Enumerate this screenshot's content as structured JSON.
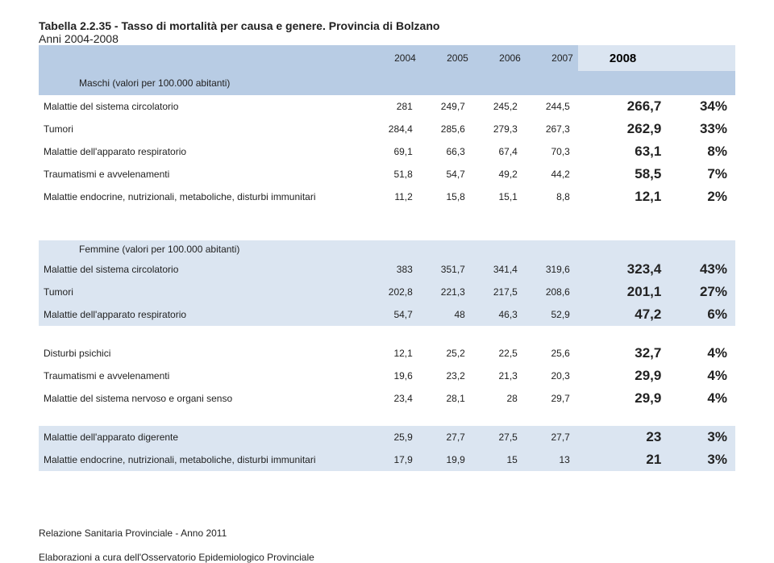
{
  "title": "Tabella 2.2.35 - Tasso di mortalità per causa e genere. Provincia di Bolzano",
  "subtitle": "Anni  2004-2008",
  "years": [
    "2004",
    "2005",
    "2006",
    "2007",
    "2008"
  ],
  "pct_header": "",
  "section_male": "Maschi (valori per 100.000 abitanti)",
  "section_female": "Femmine (valori per 100.000 abitanti)",
  "male_rows": [
    {
      "label": "Malattie del sistema circolatorio",
      "v": [
        "281",
        "249,7",
        "245,2",
        "244,5"
      ],
      "big": "266,7",
      "pct": "34%"
    },
    {
      "label": "Tumori",
      "v": [
        "284,4",
        "285,6",
        "279,3",
        "267,3"
      ],
      "big": "262,9",
      "pct": "33%"
    },
    {
      "label": "Malattie dell'apparato respiratorio",
      "v": [
        "69,1",
        "66,3",
        "67,4",
        "70,3"
      ],
      "big": "63,1",
      "pct": "8%"
    },
    {
      "label": "Traumatismi e avvelenamenti",
      "v": [
        "51,8",
        "54,7",
        "49,2",
        "44,2"
      ],
      "big": "58,5",
      "pct": "7%"
    },
    {
      "label": "Malattie endocrine, nutrizionali, metaboliche, disturbi immunitari",
      "v": [
        "11,2",
        "15,8",
        "15,1",
        "8,8"
      ],
      "big": "12,1",
      "pct": "2%"
    }
  ],
  "female_rows": [
    {
      "label": "Malattie del sistema circolatorio",
      "v": [
        "383",
        "351,7",
        "341,4",
        "319,6"
      ],
      "big": "323,4",
      "pct": "43%"
    },
    {
      "label": "Tumori",
      "v": [
        "202,8",
        "221,3",
        "217,5",
        "208,6"
      ],
      "big": "201,1",
      "pct": "27%"
    },
    {
      "label": "Malattie dell'apparato respiratorio",
      "v": [
        "54,7",
        "48",
        "46,3",
        "52,9"
      ],
      "big": "47,2",
      "pct": "6%"
    },
    {
      "label": "Disturbi psichici",
      "v": [
        "12,1",
        "25,2",
        "22,5",
        "25,6"
      ],
      "big": "32,7",
      "pct": "4%"
    },
    {
      "label": "Traumatismi e avvelenamenti",
      "v": [
        "19,6",
        "23,2",
        "21,3",
        "20,3"
      ],
      "big": "29,9",
      "pct": "4%"
    },
    {
      "label": "Malattie del sistema nervoso e organi senso",
      "v": [
        "23,4",
        "28,1",
        "28",
        "29,7"
      ],
      "big": "29,9",
      "pct": "4%"
    },
    {
      "label": "Malattie dell'apparato digerente",
      "v": [
        "25,9",
        "27,7",
        "27,5",
        "27,7"
      ],
      "big": "23",
      "pct": "3%"
    },
    {
      "label": "Malattie endocrine, nutrizionali, metaboliche, disturbi immunitari",
      "v": [
        "17,9",
        "19,9",
        "15",
        "13"
      ],
      "big": "21",
      "pct": "3%"
    }
  ],
  "female_groups": [
    3,
    3,
    2
  ],
  "footer1": "Relazione Sanitaria Provinciale - Anno 2011",
  "footer2": "Elaborazioni a cura dell'Osservatorio Epidemiologico Provinciale",
  "colors": {
    "header_bg": "#b8cce4",
    "alt_bg": "#dbe5f1",
    "plain_bg": "#ffffff"
  }
}
